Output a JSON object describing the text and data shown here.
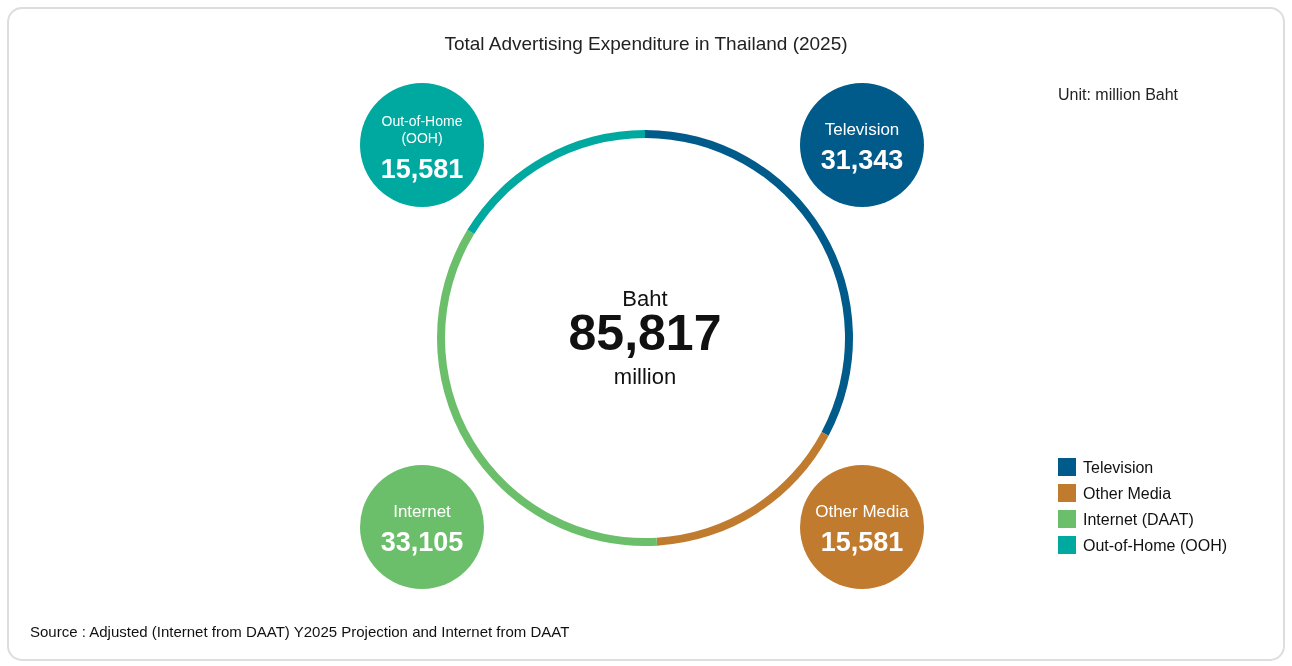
{
  "chart_data": {
    "type": "donut",
    "title": "Total Advertising Expenditure in Thailand (2025)",
    "subtitle": "Unit: million Baht",
    "categories": [
      "Television",
      "Other Media",
      "Internet (DAAT)",
      "Out-of-Home (OOH)"
    ],
    "values": [
      31343,
      15581,
      33105,
      15581
    ],
    "value_labels": [
      "31,343",
      "15,581",
      "33,105",
      "15,581"
    ],
    "colors": [
      "#005b8a",
      "#c07b2f",
      "#6cbf6a",
      "#00a9a0"
    ],
    "legend": "bottom right",
    "annotations": [
      "Baht",
      "85,817",
      "million",
      {
        "text": "Television",
        "x": "Television"
      },
      {
        "text": "Other Media",
        "x": "Other Media"
      },
      {
        "text": "Internet",
        "x": "Internet (DAAT)"
      },
      {
        "text": "Out-of-Home (OOH)",
        "x": "Out-of-Home (OOH)"
      },
      "Source : Adjusted (Internet from DAAT) Y2025 Projection and Internet from DAAT"
    ]
  }
}
